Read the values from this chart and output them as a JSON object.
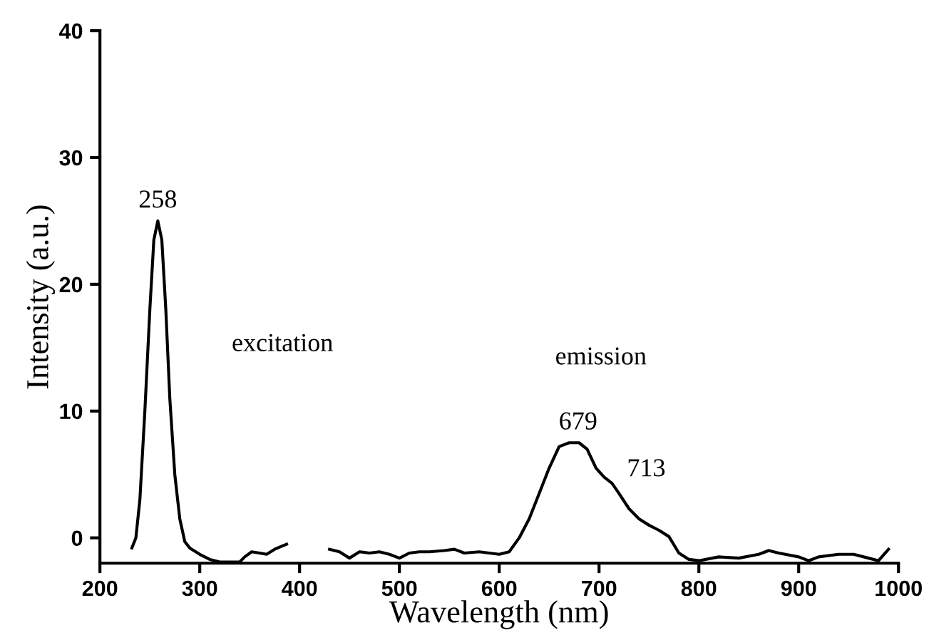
{
  "chart_data": {
    "type": "line",
    "xlabel": "Wavelength (nm)",
    "ylabel": "Intensity (a.u.)",
    "x": [
      232,
      236,
      240,
      245,
      250,
      254,
      258,
      262,
      266,
      270,
      275,
      280,
      285,
      290,
      300,
      310,
      320,
      330,
      340,
      345,
      352,
      360,
      367,
      375,
      387,
      410,
      430,
      440,
      450,
      460,
      470,
      480,
      490,
      500,
      510,
      520,
      530,
      545,
      555,
      565,
      580,
      590,
      600,
      610,
      620,
      630,
      640,
      650,
      660,
      670,
      680,
      688,
      697,
      705,
      713,
      720,
      730,
      740,
      750,
      760,
      770,
      780,
      790,
      800,
      820,
      840,
      860,
      870,
      880,
      900,
      910,
      920,
      940,
      955,
      970,
      980,
      990
    ],
    "series": [
      {
        "color": "#000000",
        "values": [
          -0.8,
          0,
          3,
          10,
          18,
          23.5,
          25,
          23.5,
          18,
          11,
          5,
          1.5,
          -0.3,
          -0.8,
          -1.3,
          -1.7,
          -1.9,
          -1.9,
          -1.9,
          -1.5,
          -1.1,
          -1.2,
          -1.3,
          -0.9,
          -0.5,
          null,
          -0.9,
          -1.1,
          -1.6,
          -1.1,
          -1.2,
          -1.1,
          -1.3,
          -1.6,
          -1.2,
          -1.1,
          -1.1,
          -1.0,
          -0.9,
          -1.2,
          -1.1,
          -1.2,
          -1.3,
          -1.1,
          0,
          1.5,
          3.5,
          5.5,
          7.2,
          7.5,
          7.5,
          7.0,
          5.5,
          4.8,
          4.3,
          3.5,
          2.3,
          1.5,
          1.0,
          0.6,
          0.1,
          -1.2,
          -1.7,
          -1.8,
          -1.5,
          -1.6,
          -1.3,
          -1.0,
          -1.2,
          -1.5,
          -1.8,
          -1.5,
          -1.3,
          -1.3,
          -1.6,
          -1.8,
          -0.9
        ]
      }
    ],
    "xlim": [
      200,
      1000
    ],
    "ylim": [
      -2,
      40
    ],
    "xticks": [
      200,
      300,
      400,
      500,
      600,
      700,
      800,
      900,
      1000
    ],
    "yticks": [
      0,
      10,
      20,
      30,
      40
    ],
    "grid": false,
    "legend": false,
    "marker": "none",
    "line_style": "solid",
    "annotations": [
      {
        "text": "258",
        "x": 258,
        "y": 25
      },
      "excitation",
      "emission",
      {
        "text": "679",
        "x": 679,
        "y": 7.5
      },
      "713"
    ]
  }
}
